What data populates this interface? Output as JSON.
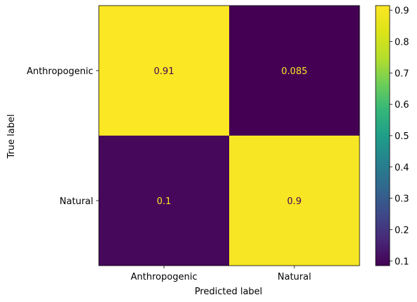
{
  "chart_data": {
    "type": "heatmap",
    "title": "",
    "xlabel": "Predicted label",
    "ylabel": "True label",
    "x_categories": [
      "Anthropogenic",
      "Natural"
    ],
    "y_categories": [
      "Anthropogenic",
      "Natural"
    ],
    "matrix": [
      [
        0.91,
        0.085
      ],
      [
        0.1,
        0.9
      ]
    ],
    "cell_labels": [
      [
        "0.91",
        "0.085"
      ],
      [
        "0.1",
        "0.9"
      ]
    ],
    "colormap": "viridis",
    "colorbar": {
      "range": [
        0.085,
        0.915
      ],
      "ticks": [
        0.1,
        0.2,
        0.3,
        0.4,
        0.5,
        0.6,
        0.7,
        0.8,
        0.9
      ],
      "tick_labels": [
        "0.1",
        "0.2",
        "0.3",
        "0.4",
        "0.5",
        "0.6",
        "0.7",
        "0.8",
        "0.9"
      ]
    },
    "text_colors": {
      "on_dark": "#fde725",
      "on_light": "#440154"
    },
    "grid": false
  }
}
